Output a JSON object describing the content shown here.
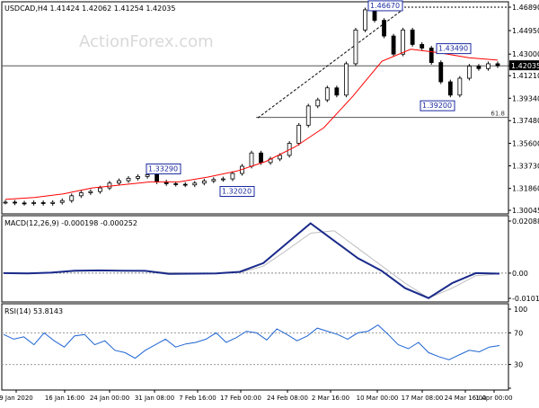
{
  "chart_data": [
    {
      "type": "candlestick",
      "title": "USDCAD,H4  1.41424 1.42062 1.41254 1.42035",
      "watermark": "ActionForex.com",
      "y_ticks": [
        "1.46890",
        "1.44950",
        "1.43000",
        "1.42035",
        "1.41210",
        "1.39340",
        "1.37480",
        "1.35600",
        "1.33730",
        "1.31860",
        "1.30045"
      ],
      "ylim": [
        1.30045,
        1.4689
      ],
      "current_price": "1.42035",
      "horizontal_levels": [
        {
          "value": 1.4203,
          "label": ""
        },
        {
          "value": 1.3775,
          "label": "61.8"
        }
      ],
      "annotations": [
        "1.46670",
        "1.43490",
        "1.39200",
        "1.33290",
        "1.32020"
      ],
      "trendline": {
        "from": {
          "x": "3 Mar",
          "y": 1.3771
        },
        "to": {
          "x": "18 Mar",
          "y": 1.4667
        }
      },
      "series": [
        {
          "name": "",
          "color": "#ff0000",
          "values": [
            1.3095,
            1.311,
            1.314,
            1.319,
            1.3215,
            1.324,
            1.324,
            1.328,
            1.333,
            1.341,
            1.353,
            1.369,
            1.395,
            1.424,
            1.434,
            1.431,
            1.427,
            1.425
          ]
        }
      ],
      "ohlc_close": [
        1.3072,
        1.3065,
        1.3062,
        1.3068,
        1.3061,
        1.307,
        1.3085,
        1.3125,
        1.315,
        1.316,
        1.319,
        1.323,
        1.325,
        1.327,
        1.3285,
        1.33,
        1.324,
        1.3225,
        1.322,
        1.3215,
        1.323,
        1.3248,
        1.326,
        1.3265,
        1.331,
        1.337,
        1.348,
        1.34,
        1.343,
        1.346,
        1.356,
        1.371,
        1.387,
        1.392,
        1.402,
        1.396,
        1.422,
        1.45,
        1.4667,
        1.458,
        1.445,
        1.43,
        1.45,
        1.438,
        1.435,
        1.423,
        1.407,
        1.396,
        1.41,
        1.42,
        1.418,
        1.422,
        1.4203
      ]
    },
    {
      "type": "line",
      "title": "MACD(12,26,9) -0.000198 -0.000252",
      "y_ticks": [
        "0.020884",
        "0.00",
        "-0.010121"
      ],
      "ylim": [
        -0.010121,
        0.020884
      ],
      "series": [
        {
          "name": "",
          "color": "#1a2a8a",
          "values": [
            0.0,
            -0.0001,
            0.0002,
            0.001,
            0.0011,
            0.001,
            0.0009,
            -0.0003,
            -0.0002,
            -0.0001,
            0.0005,
            0.004,
            0.012,
            0.02,
            0.013,
            0.006,
            0.001,
            -0.006,
            -0.01,
            -0.004,
            0.0,
            -0.0002
          ]
        },
        {
          "name": "",
          "color": "#bdbdbd",
          "values": [
            0.0001,
            0.0,
            0.0001,
            0.0007,
            0.001,
            0.001,
            0.0009,
            0.0002,
            0.0,
            -0.0001,
            0.0002,
            0.0028,
            0.0092,
            0.016,
            0.017,
            0.01,
            0.003,
            -0.004,
            -0.01,
            -0.006,
            -0.001,
            -0.0003
          ]
        }
      ]
    },
    {
      "type": "line",
      "title": "RSI(14) 53.8143",
      "y_ticks": [
        "100",
        "70",
        "30",
        "0"
      ],
      "ylim": [
        0,
        100
      ],
      "levels": [
        70,
        30
      ],
      "series": [
        {
          "name": "",
          "color": "#1e64d2",
          "values": [
            68,
            62,
            65,
            55,
            70,
            60,
            52,
            66,
            68,
            55,
            60,
            48,
            45,
            38,
            48,
            55,
            62,
            52,
            56,
            58,
            62,
            70,
            58,
            64,
            72,
            70,
            61,
            75,
            68,
            60,
            66,
            76,
            72,
            68,
            62,
            70,
            72,
            80,
            68,
            55,
            50,
            58,
            45,
            40,
            36,
            42,
            48,
            46,
            52,
            54
          ]
        }
      ]
    }
  ],
  "x_axis": {
    "labels": [
      "9 Jan 2020",
      "16 Jan 16:00",
      "24 Jan 00:00",
      "31 Jan 08:00",
      "7 Feb 16:00",
      "17 Feb 00:00",
      "24 Feb 08:00",
      "2 Mar 16:00",
      "10 Mar 00:00",
      "17 Mar 08:00",
      "24 Mar 16:00",
      "1 Apr 00:00"
    ]
  }
}
